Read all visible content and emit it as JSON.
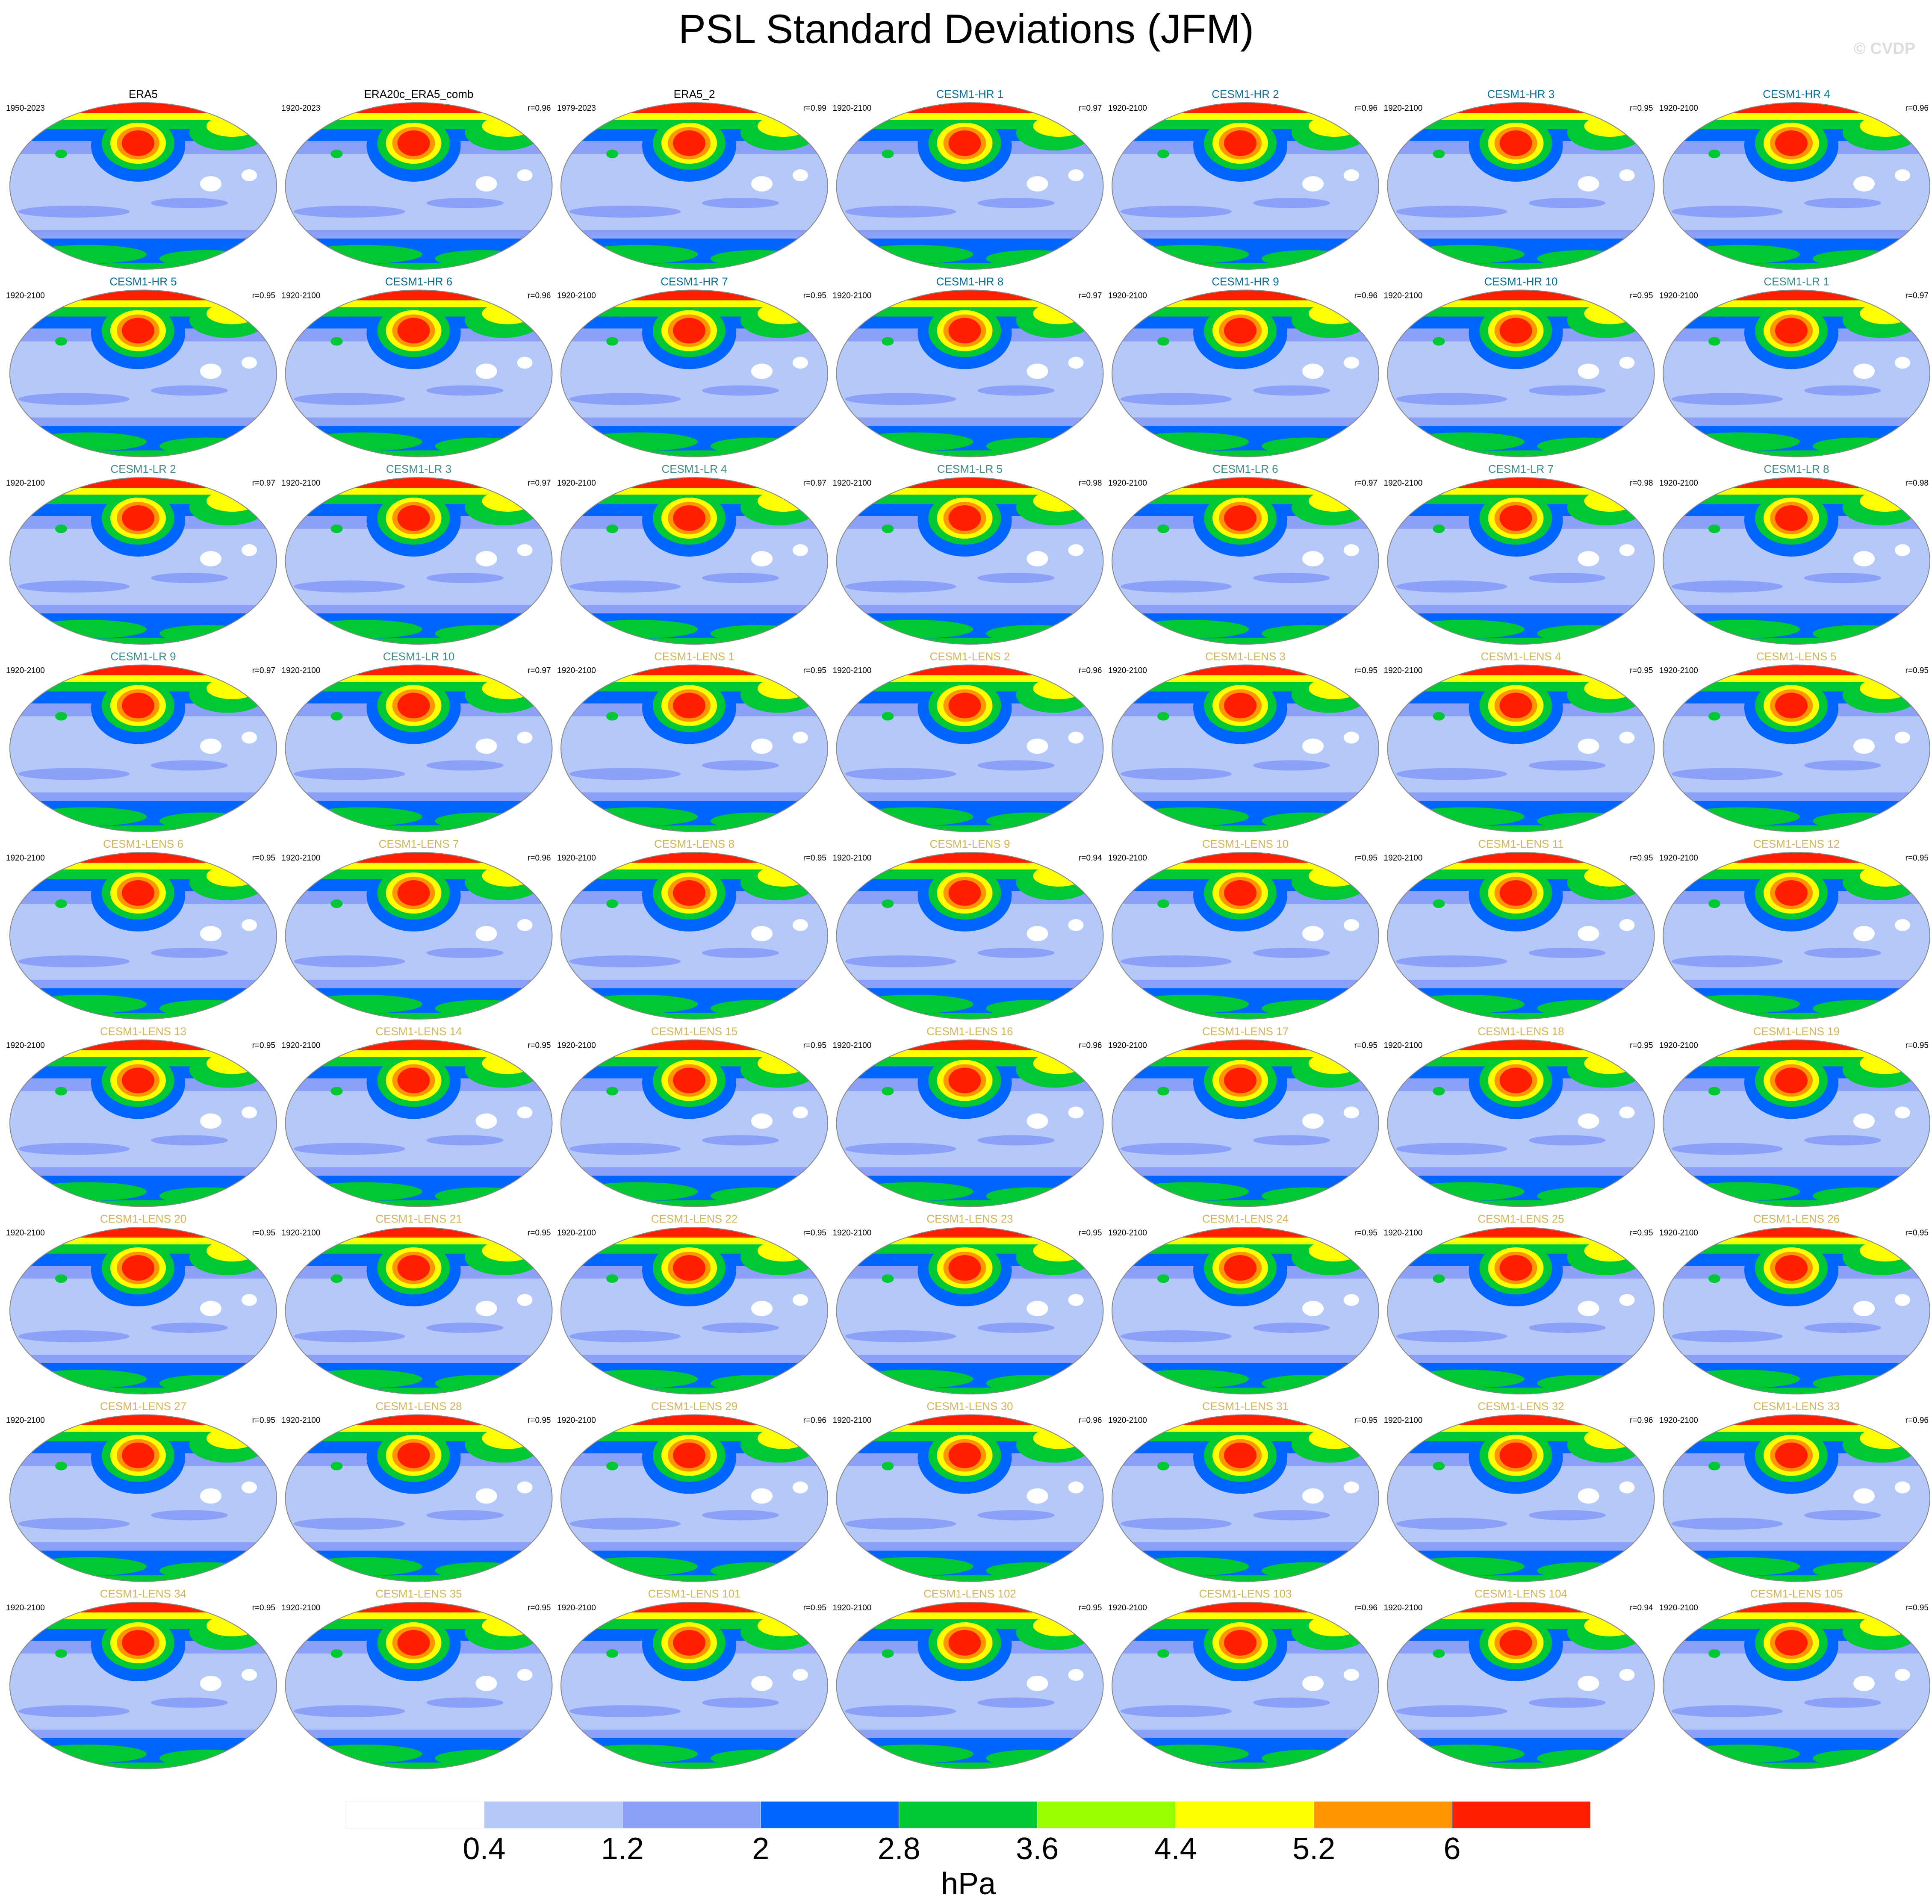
{
  "header": {
    "title": "PSL Standard Deviations (JFM)",
    "watermark": "© CVDP"
  },
  "groups": [
    {
      "color": "#000000",
      "panels": [
        {
          "title": "ERA5",
          "period": "1950-2023"
        },
        {
          "title": "ERA20c_ERA5_comb",
          "period": "1920-2023",
          "r": "r=0.96"
        },
        {
          "title": "ERA5_2",
          "period": "1979-2023",
          "r": "r=0.99"
        }
      ]
    },
    {
      "color": "#0a6e96",
      "panels": [
        {
          "title": "CESM1-HR 1",
          "period": "1920-2100",
          "r": "r=0.97"
        },
        {
          "title": "CESM1-HR 2",
          "period": "1920-2100",
          "r": "r=0.96"
        },
        {
          "title": "CESM1-HR 3",
          "period": "1920-2100",
          "r": "r=0.95"
        },
        {
          "title": "CESM1-HR 4",
          "period": "1920-2100",
          "r": "r=0.96"
        },
        {
          "title": "CESM1-HR 5",
          "period": "1920-2100",
          "r": "r=0.95"
        },
        {
          "title": "CESM1-HR 6",
          "period": "1920-2100",
          "r": "r=0.96"
        },
        {
          "title": "CESM1-HR 7",
          "period": "1920-2100",
          "r": "r=0.95"
        },
        {
          "title": "CESM1-HR 8",
          "period": "1920-2100",
          "r": "r=0.97"
        },
        {
          "title": "CESM1-HR 9",
          "period": "1920-2100",
          "r": "r=0.96"
        },
        {
          "title": "CESM1-HR 10",
          "period": "1920-2100",
          "r": "r=0.95"
        }
      ]
    },
    {
      "color": "#3c8c8c",
      "panels": [
        {
          "title": "CESM1-LR 1",
          "period": "1920-2100",
          "r": "r=0.97"
        },
        {
          "title": "CESM1-LR 2",
          "period": "1920-2100",
          "r": "r=0.97"
        },
        {
          "title": "CESM1-LR 3",
          "period": "1920-2100",
          "r": "r=0.97"
        },
        {
          "title": "CESM1-LR 4",
          "period": "1920-2100",
          "r": "r=0.97"
        },
        {
          "title": "CESM1-LR 5",
          "period": "1920-2100",
          "r": "r=0.98"
        },
        {
          "title": "CESM1-LR 6",
          "period": "1920-2100",
          "r": "r=0.97"
        },
        {
          "title": "CESM1-LR 7",
          "period": "1920-2100",
          "r": "r=0.98"
        },
        {
          "title": "CESM1-LR 8",
          "period": "1920-2100",
          "r": "r=0.98"
        },
        {
          "title": "CESM1-LR 9",
          "period": "1920-2100",
          "r": "r=0.97"
        },
        {
          "title": "CESM1-LR 10",
          "period": "1920-2100",
          "r": "r=0.97"
        }
      ]
    },
    {
      "color": "#d2b45a",
      "panels": [
        {
          "title": "CESM1-LENS 1",
          "period": "1920-2100",
          "r": "r=0.95"
        },
        {
          "title": "CESM1-LENS 2",
          "period": "1920-2100",
          "r": "r=0.96"
        },
        {
          "title": "CESM1-LENS 3",
          "period": "1920-2100",
          "r": "r=0.95"
        },
        {
          "title": "CESM1-LENS 4",
          "period": "1920-2100",
          "r": "r=0.95"
        },
        {
          "title": "CESM1-LENS 5",
          "period": "1920-2100",
          "r": "r=0.95"
        },
        {
          "title": "CESM1-LENS 6",
          "period": "1920-2100",
          "r": "r=0.95"
        },
        {
          "title": "CESM1-LENS 7",
          "period": "1920-2100",
          "r": "r=0.96"
        },
        {
          "title": "CESM1-LENS 8",
          "period": "1920-2100",
          "r": "r=0.95"
        },
        {
          "title": "CESM1-LENS 9",
          "period": "1920-2100",
          "r": "r=0.94"
        },
        {
          "title": "CESM1-LENS 10",
          "period": "1920-2100",
          "r": "r=0.95"
        },
        {
          "title": "CESM1-LENS 11",
          "period": "1920-2100",
          "r": "r=0.95"
        },
        {
          "title": "CESM1-LENS 12",
          "period": "1920-2100",
          "r": "r=0.95"
        },
        {
          "title": "CESM1-LENS 13",
          "period": "1920-2100",
          "r": "r=0.95"
        },
        {
          "title": "CESM1-LENS 14",
          "period": "1920-2100",
          "r": "r=0.95"
        },
        {
          "title": "CESM1-LENS 15",
          "period": "1920-2100",
          "r": "r=0.95"
        },
        {
          "title": "CESM1-LENS 16",
          "period": "1920-2100",
          "r": "r=0.96"
        },
        {
          "title": "CESM1-LENS 17",
          "period": "1920-2100",
          "r": "r=0.95"
        },
        {
          "title": "CESM1-LENS 18",
          "period": "1920-2100",
          "r": "r=0.95"
        },
        {
          "title": "CESM1-LENS 19",
          "period": "1920-2100",
          "r": "r=0.95"
        },
        {
          "title": "CESM1-LENS 20",
          "period": "1920-2100",
          "r": "r=0.95"
        },
        {
          "title": "CESM1-LENS 21",
          "period": "1920-2100",
          "r": "r=0.95"
        },
        {
          "title": "CESM1-LENS 22",
          "period": "1920-2100",
          "r": "r=0.95"
        },
        {
          "title": "CESM1-LENS 23",
          "period": "1920-2100",
          "r": "r=0.95"
        },
        {
          "title": "CESM1-LENS 24",
          "period": "1920-2100",
          "r": "r=0.95"
        },
        {
          "title": "CESM1-LENS 25",
          "period": "1920-2100",
          "r": "r=0.95"
        },
        {
          "title": "CESM1-LENS 26",
          "period": "1920-2100",
          "r": "r=0.95"
        },
        {
          "title": "CESM1-LENS 27",
          "period": "1920-2100",
          "r": "r=0.95"
        },
        {
          "title": "CESM1-LENS 28",
          "period": "1920-2100",
          "r": "r=0.95"
        },
        {
          "title": "CESM1-LENS 29",
          "period": "1920-2100",
          "r": "r=0.96"
        },
        {
          "title": "CESM1-LENS 30",
          "period": "1920-2100",
          "r": "r=0.96"
        },
        {
          "title": "CESM1-LENS 31",
          "period": "1920-2100",
          "r": "r=0.95"
        },
        {
          "title": "CESM1-LENS 32",
          "period": "1920-2100",
          "r": "r=0.96"
        },
        {
          "title": "CESM1-LENS 33",
          "period": "1920-2100",
          "r": "r=0.96"
        },
        {
          "title": "CESM1-LENS 34",
          "period": "1920-2100",
          "r": "r=0.95"
        },
        {
          "title": "CESM1-LENS 35",
          "period": "1920-2100",
          "r": "r=0.95"
        },
        {
          "title": "CESM1-LENS 101",
          "period": "1920-2100",
          "r": "r=0.95"
        },
        {
          "title": "CESM1-LENS 102",
          "period": "1920-2100",
          "r": "r=0.95"
        },
        {
          "title": "CESM1-LENS 103",
          "period": "1920-2100",
          "r": "r=0.96"
        },
        {
          "title": "CESM1-LENS 104",
          "period": "1920-2100",
          "r": "r=0.94"
        },
        {
          "title": "CESM1-LENS 105",
          "period": "1920-2100",
          "r": "r=0.95"
        }
      ]
    }
  ],
  "colorbar": {
    "colors": [
      "#ffffff",
      "#b4c8fa",
      "#8ca0fa",
      "#0064ff",
      "#00c832",
      "#96ff00",
      "#ffff00",
      "#ff9600",
      "#ff1e00"
    ],
    "levels": [
      0.4,
      1.2,
      2,
      2.8,
      3.6,
      4.4,
      5.2,
      6
    ],
    "unit": "hPa"
  }
}
